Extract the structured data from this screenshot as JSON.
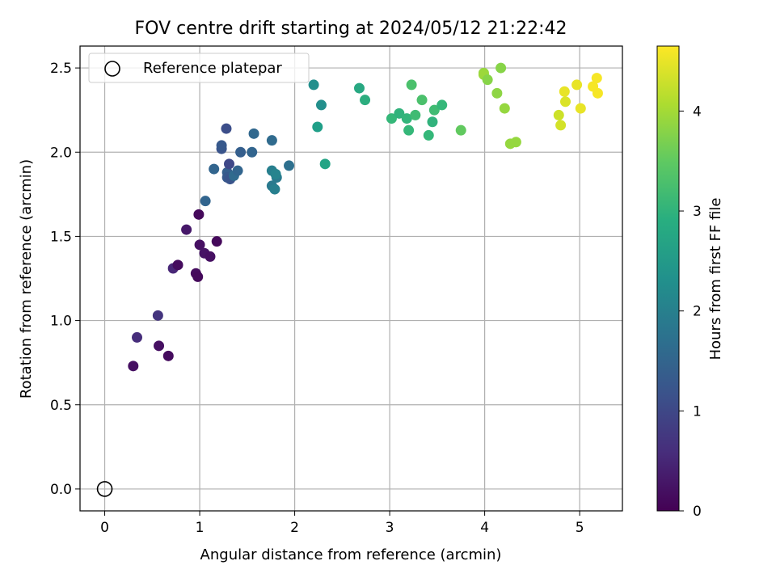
{
  "chart_data": {
    "type": "scatter",
    "title": "FOV centre drift starting at 2024/05/12 21:22:42",
    "xlabel": "Angular distance from reference (arcmin)",
    "ylabel": "Rotation from reference (arcmin)",
    "xlim": [
      -0.26,
      5.45
    ],
    "ylim": [
      -0.13,
      2.63
    ],
    "xticks": [
      0,
      1,
      2,
      3,
      4,
      5
    ],
    "yticks": [
      0.0,
      0.5,
      1.0,
      1.5,
      2.0,
      2.5
    ],
    "xtick_labels": [
      "0",
      "1",
      "2",
      "3",
      "4",
      "5"
    ],
    "ytick_labels": [
      "0.0",
      "0.5",
      "1.0",
      "1.5",
      "2.0",
      "2.5"
    ],
    "grid": true,
    "colormap": "viridis",
    "colorbar": {
      "label": "Hours from first FF file",
      "range": [
        0,
        4.65
      ],
      "ticks": [
        0,
        1,
        2,
        3,
        4
      ],
      "tick_labels": [
        "0",
        "1",
        "2",
        "3",
        "4"
      ]
    },
    "legend": {
      "position": "top-left",
      "entries": [
        {
          "label": "Reference platepar",
          "marker": "open-circle"
        }
      ]
    },
    "reference_point": {
      "x": 0,
      "y": 0
    },
    "points": [
      {
        "x": 0.3,
        "y": 0.73,
        "h": 0.2
      },
      {
        "x": 0.34,
        "y": 0.9,
        "h": 0.6
      },
      {
        "x": 0.56,
        "y": 1.03,
        "h": 0.7
      },
      {
        "x": 0.57,
        "y": 0.85,
        "h": 0.2
      },
      {
        "x": 0.67,
        "y": 0.79,
        "h": 0.15
      },
      {
        "x": 0.72,
        "y": 1.31,
        "h": 0.5
      },
      {
        "x": 0.77,
        "y": 1.33,
        "h": 0.15
      },
      {
        "x": 0.86,
        "y": 1.54,
        "h": 0.3
      },
      {
        "x": 0.96,
        "y": 1.28,
        "h": 0.15
      },
      {
        "x": 0.98,
        "y": 1.26,
        "h": 0.1
      },
      {
        "x": 0.99,
        "y": 1.63,
        "h": 0.1
      },
      {
        "x": 1.0,
        "y": 1.45,
        "h": 0.2
      },
      {
        "x": 1.05,
        "y": 1.4,
        "h": 0.25
      },
      {
        "x": 1.11,
        "y": 1.38,
        "h": 0.2
      },
      {
        "x": 1.18,
        "y": 1.47,
        "h": 0.1
      },
      {
        "x": 1.06,
        "y": 1.71,
        "h": 1.5
      },
      {
        "x": 1.15,
        "y": 1.9,
        "h": 1.5
      },
      {
        "x": 1.23,
        "y": 2.02,
        "h": 1.2
      },
      {
        "x": 1.23,
        "y": 2.04,
        "h": 1.3
      },
      {
        "x": 1.28,
        "y": 2.14,
        "h": 1.1
      },
      {
        "x": 1.29,
        "y": 1.88,
        "h": 1.4
      },
      {
        "x": 1.29,
        "y": 1.85,
        "h": 1.3
      },
      {
        "x": 1.31,
        "y": 1.93,
        "h": 1.0
      },
      {
        "x": 1.32,
        "y": 1.84,
        "h": 1.2
      },
      {
        "x": 1.36,
        "y": 1.86,
        "h": 1.6
      },
      {
        "x": 1.4,
        "y": 1.89,
        "h": 1.5
      },
      {
        "x": 1.43,
        "y": 2.0,
        "h": 1.4
      },
      {
        "x": 1.55,
        "y": 2.0,
        "h": 1.5
      },
      {
        "x": 1.57,
        "y": 2.11,
        "h": 1.55
      },
      {
        "x": 1.76,
        "y": 2.07,
        "h": 1.6
      },
      {
        "x": 1.76,
        "y": 1.89,
        "h": 2.0
      },
      {
        "x": 1.76,
        "y": 1.8,
        "h": 1.9
      },
      {
        "x": 1.79,
        "y": 1.78,
        "h": 2.0
      },
      {
        "x": 1.81,
        "y": 1.85,
        "h": 1.9
      },
      {
        "x": 1.8,
        "y": 1.87,
        "h": 2.1
      },
      {
        "x": 1.94,
        "y": 1.92,
        "h": 1.7
      },
      {
        "x": 2.2,
        "y": 2.4,
        "h": 2.3
      },
      {
        "x": 2.24,
        "y": 2.15,
        "h": 2.6
      },
      {
        "x": 2.28,
        "y": 2.28,
        "h": 2.3
      },
      {
        "x": 2.32,
        "y": 1.93,
        "h": 2.7
      },
      {
        "x": 2.68,
        "y": 2.38,
        "h": 2.8
      },
      {
        "x": 2.74,
        "y": 2.31,
        "h": 2.9
      },
      {
        "x": 3.02,
        "y": 2.2,
        "h": 3.1
      },
      {
        "x": 3.1,
        "y": 2.23,
        "h": 3.0
      },
      {
        "x": 3.18,
        "y": 2.2,
        "h": 3.05
      },
      {
        "x": 3.2,
        "y": 2.13,
        "h": 3.1
      },
      {
        "x": 3.23,
        "y": 2.4,
        "h": 3.3
      },
      {
        "x": 3.27,
        "y": 2.22,
        "h": 3.2
      },
      {
        "x": 3.34,
        "y": 2.31,
        "h": 3.3
      },
      {
        "x": 3.41,
        "y": 2.1,
        "h": 3.1
      },
      {
        "x": 3.45,
        "y": 2.18,
        "h": 3.0
      },
      {
        "x": 3.47,
        "y": 2.25,
        "h": 3.2
      },
      {
        "x": 3.55,
        "y": 2.28,
        "h": 3.1
      },
      {
        "x": 3.75,
        "y": 2.13,
        "h": 3.5
      },
      {
        "x": 3.99,
        "y": 2.47,
        "h": 3.9
      },
      {
        "x": 3.99,
        "y": 2.46,
        "h": 3.95
      },
      {
        "x": 4.03,
        "y": 2.43,
        "h": 3.8
      },
      {
        "x": 4.13,
        "y": 2.35,
        "h": 3.85
      },
      {
        "x": 4.17,
        "y": 2.5,
        "h": 3.8
      },
      {
        "x": 4.21,
        "y": 2.26,
        "h": 3.9
      },
      {
        "x": 4.27,
        "y": 2.05,
        "h": 3.9
      },
      {
        "x": 4.33,
        "y": 2.06,
        "h": 3.9
      },
      {
        "x": 4.78,
        "y": 2.22,
        "h": 4.3
      },
      {
        "x": 4.8,
        "y": 2.16,
        "h": 4.35
      },
      {
        "x": 4.84,
        "y": 2.36,
        "h": 4.5
      },
      {
        "x": 4.85,
        "y": 2.3,
        "h": 4.4
      },
      {
        "x": 4.97,
        "y": 2.4,
        "h": 4.5
      },
      {
        "x": 5.01,
        "y": 2.26,
        "h": 4.5
      },
      {
        "x": 5.14,
        "y": 2.39,
        "h": 4.6
      },
      {
        "x": 5.18,
        "y": 2.44,
        "h": 4.6
      },
      {
        "x": 5.19,
        "y": 2.35,
        "h": 4.6
      }
    ]
  }
}
